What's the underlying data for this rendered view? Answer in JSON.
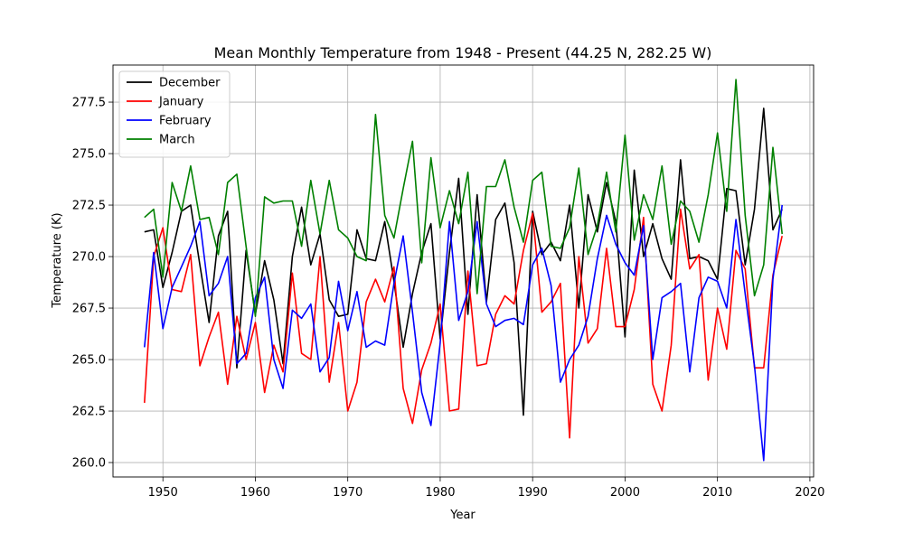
{
  "chart_data": {
    "type": "line",
    "title": "Mean Monthly Temperature from 1948 - Present (44.25 N, 282.25 W)",
    "xlabel": "Year",
    "ylabel": "Temperature (K)",
    "xlim": [
      1944.6,
      2020.4
    ],
    "ylim": [
      259.3,
      279.3
    ],
    "xticks": [
      1950,
      1960,
      1970,
      1980,
      1990,
      2000,
      2010,
      2020
    ],
    "yticks": [
      260.0,
      262.5,
      265.0,
      267.5,
      270.0,
      272.5,
      275.0,
      277.5
    ],
    "grid": true,
    "legend_position": "top-left",
    "x": [
      1948,
      1949,
      1950,
      1951,
      1952,
      1953,
      1954,
      1955,
      1956,
      1957,
      1958,
      1959,
      1960,
      1961,
      1962,
      1963,
      1964,
      1965,
      1966,
      1967,
      1968,
      1969,
      1970,
      1971,
      1972,
      1973,
      1974,
      1975,
      1976,
      1977,
      1978,
      1979,
      1980,
      1981,
      1982,
      1983,
      1984,
      1985,
      1986,
      1987,
      1988,
      1989,
      1990,
      1991,
      1992,
      1993,
      1994,
      1995,
      1996,
      1997,
      1998,
      1999,
      2000,
      2001,
      2002,
      2003,
      2004,
      2005,
      2006,
      2007,
      2008,
      2009,
      2010,
      2011,
      2012,
      2013,
      2014,
      2015,
      2016,
      2017
    ],
    "series": [
      {
        "name": "December",
        "color": "#000000",
        "values": [
          271.2,
          271.3,
          268.5,
          270.2,
          272.2,
          272.5,
          269.6,
          266.8,
          271.0,
          272.2,
          264.6,
          270.3,
          267.2,
          269.8,
          267.9,
          264.8,
          270.0,
          272.4,
          269.6,
          271.1,
          267.9,
          267.1,
          267.2,
          271.3,
          269.9,
          269.8,
          271.7,
          268.8,
          265.6,
          268.2,
          270.2,
          271.6,
          266.0,
          270.2,
          273.8,
          267.2,
          273.0,
          267.8,
          271.8,
          272.6,
          269.7,
          262.3,
          272.2,
          270.1,
          270.7,
          269.8,
          272.5,
          267.5,
          273.0,
          271.2,
          273.6,
          271.7,
          266.1,
          274.2,
          270.0,
          271.6,
          269.9,
          268.9,
          274.7,
          269.9,
          270.0,
          269.8,
          268.9,
          273.3,
          273.2,
          269.6,
          272.3,
          277.2,
          271.3,
          272.3
        ]
      },
      {
        "name": "January",
        "color": "#ff0000",
        "values": [
          262.9,
          270.0,
          271.4,
          268.4,
          268.3,
          270.1,
          264.7,
          266.1,
          267.3,
          263.8,
          267.1,
          265.0,
          266.8,
          263.4,
          265.7,
          264.4,
          269.2,
          265.3,
          265.0,
          270.0,
          263.9,
          266.8,
          262.5,
          263.9,
          267.8,
          268.9,
          267.8,
          269.5,
          263.6,
          261.9,
          264.5,
          265.8,
          267.7,
          262.5,
          262.6,
          269.3,
          264.7,
          264.8,
          267.2,
          268.1,
          267.7,
          270.3,
          272.1,
          267.3,
          267.8,
          268.7,
          261.2,
          270.0,
          265.8,
          266.5,
          270.4,
          266.6,
          266.6,
          268.4,
          271.9,
          263.8,
          262.5,
          265.7,
          272.3,
          269.4,
          270.1,
          264.0,
          267.5,
          265.5,
          270.3,
          269.4,
          264.6,
          264.6,
          269.1,
          271.0
        ]
      },
      {
        "name": "February",
        "color": "#0000ff",
        "values": [
          265.6,
          270.2,
          266.5,
          268.5,
          269.5,
          270.5,
          271.7,
          268.1,
          268.7,
          270.0,
          264.8,
          265.3,
          268.0,
          269.0,
          265.0,
          263.6,
          267.4,
          267.0,
          267.7,
          264.4,
          265.1,
          268.8,
          266.4,
          268.3,
          265.6,
          265.9,
          265.7,
          268.7,
          271.0,
          267.3,
          263.4,
          261.8,
          265.8,
          271.7,
          266.9,
          268.3,
          271.7,
          267.7,
          266.6,
          266.9,
          267.0,
          266.7,
          269.6,
          270.4,
          268.6,
          263.9,
          265.0,
          265.7,
          267.1,
          269.9,
          272.0,
          270.6,
          269.7,
          269.1,
          271.5,
          265.0,
          268.0,
          268.3,
          268.7,
          264.4,
          268.0,
          269.0,
          268.8,
          267.5,
          271.8,
          268.2,
          264.7,
          260.1,
          268.9,
          272.5
        ]
      },
      {
        "name": "March",
        "color": "#008000",
        "values": [
          271.9,
          272.3,
          269.0,
          273.6,
          272.2,
          274.4,
          271.8,
          271.9,
          270.1,
          273.6,
          274.0,
          270.5,
          267.1,
          272.9,
          272.6,
          272.7,
          272.7,
          270.5,
          273.7,
          271.1,
          273.7,
          271.3,
          270.9,
          270.0,
          269.8,
          276.9,
          272.0,
          270.9,
          273.3,
          275.6,
          269.7,
          274.8,
          271.4,
          273.2,
          271.6,
          274.1,
          268.2,
          273.4,
          273.4,
          274.7,
          272.4,
          270.7,
          273.7,
          274.1,
          270.5,
          270.4,
          271.4,
          274.3,
          270.1,
          271.5,
          274.1,
          271.2,
          275.9,
          270.8,
          273.0,
          271.8,
          274.4,
          270.6,
          272.7,
          272.2,
          270.7,
          273.0,
          276.0,
          272.2,
          278.6,
          272.0,
          268.1,
          269.6,
          275.3,
          271.1
        ]
      }
    ]
  }
}
